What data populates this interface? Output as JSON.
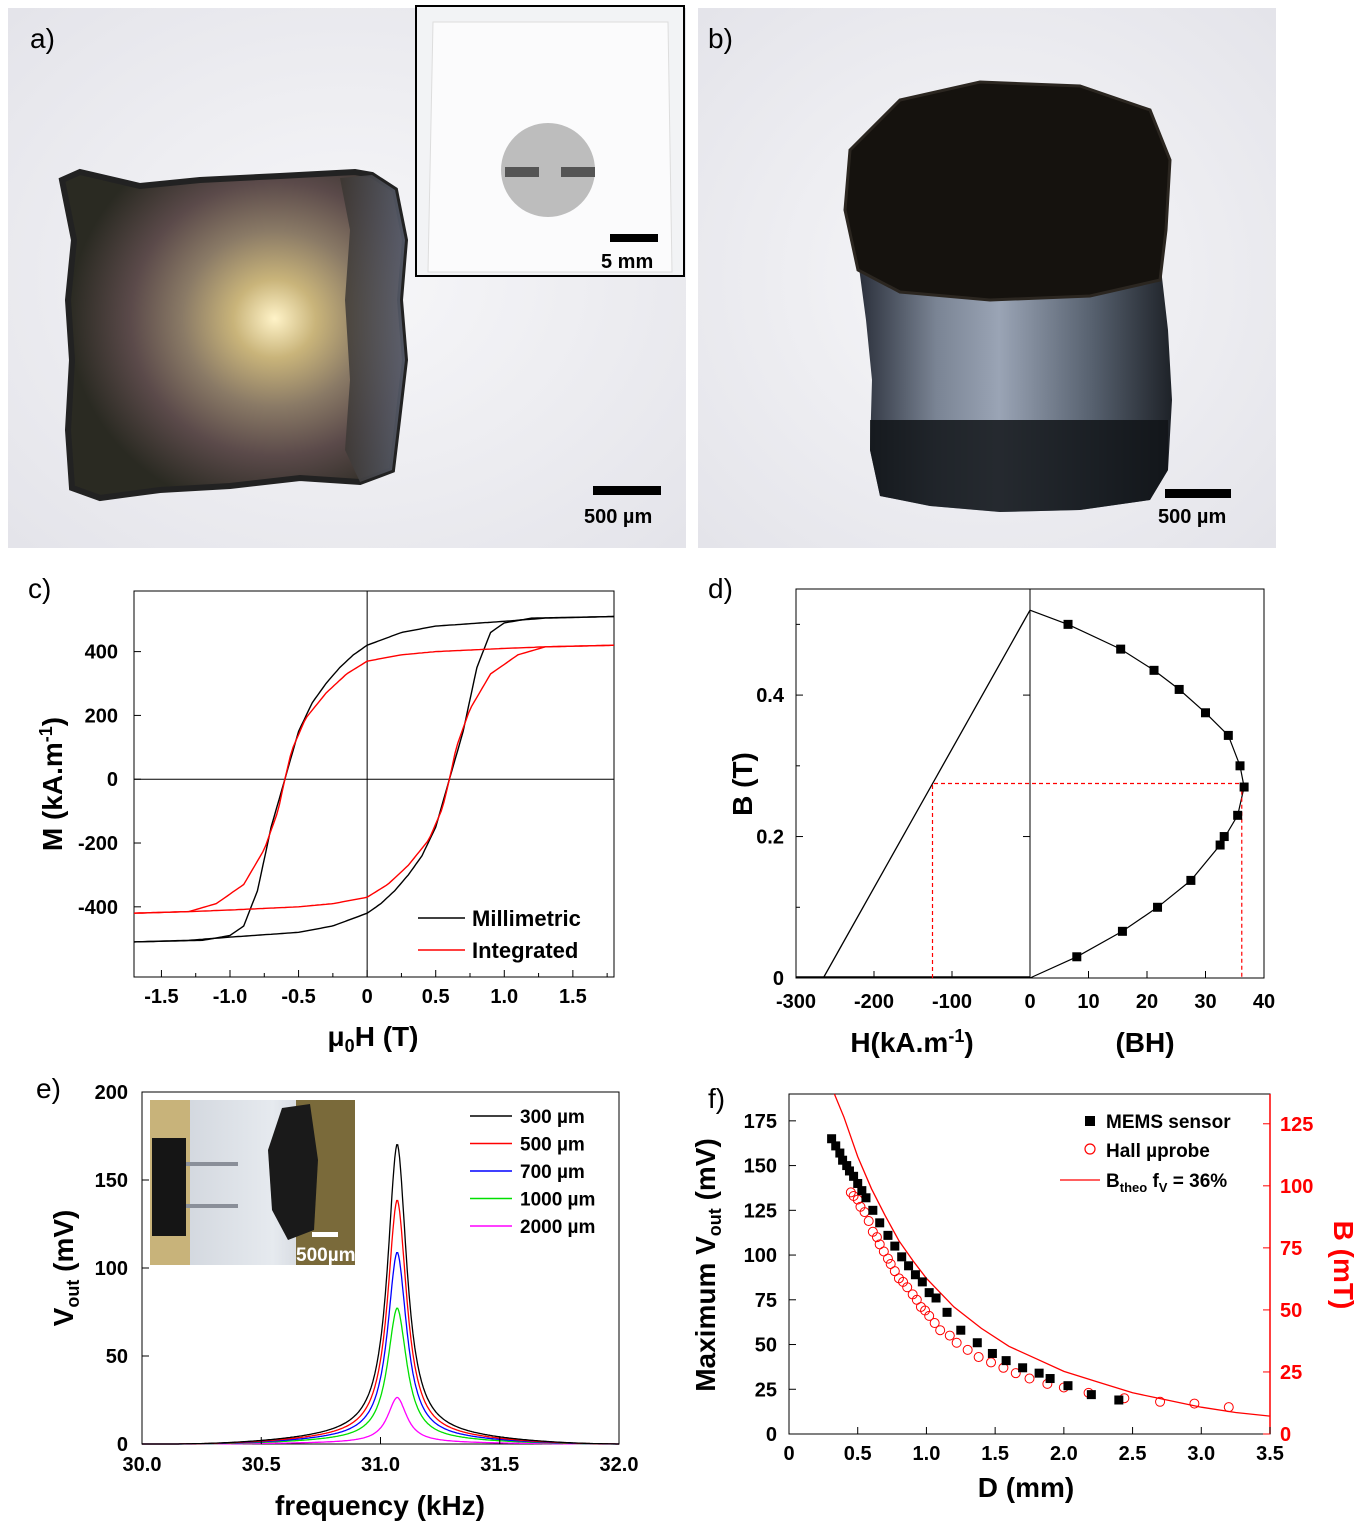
{
  "panels": {
    "a": {
      "label": "a)",
      "scale_bar": "500 µm",
      "inset_scale_bar": "5 mm"
    },
    "b": {
      "label": "b)",
      "scale_bar": "500 µm"
    },
    "c": {
      "label": "c)"
    },
    "d": {
      "label": "d)"
    },
    "e": {
      "label": "e)",
      "inset_scale_bar": "500µm"
    },
    "f": {
      "label": "f)"
    }
  },
  "colors": {
    "black": "#000000",
    "red": "#ff0000",
    "blue": "#0000ff",
    "green": "#00e000",
    "magenta": "#ff00ff"
  },
  "chart_data": [
    {
      "id": "c",
      "type": "line",
      "xlabel": "μ0H (T)",
      "ylabel": "M (kA.m-1)",
      "xlim": [
        -1.7,
        1.8
      ],
      "ylim": [
        -620,
        590
      ],
      "xticks": [
        "-1.5",
        "-1.0",
        "-0.5",
        "0",
        "0.5",
        "1.0",
        "1.5"
      ],
      "yticks": [
        "-400",
        "-200",
        "0",
        "200",
        "400"
      ],
      "legend_position": "bottom-right",
      "series": [
        {
          "name": "Millimetric",
          "color": "#000000",
          "upper_branch": [
            [
              -1.7,
              -510
            ],
            [
              -1.2,
              -505
            ],
            [
              -1.0,
              -490
            ],
            [
              -0.9,
              -460
            ],
            [
              -0.8,
              -350
            ],
            [
              -0.7,
              -150
            ],
            [
              -0.6,
              0
            ],
            [
              -0.5,
              150
            ],
            [
              -0.4,
              240
            ],
            [
              -0.3,
              300
            ],
            [
              -0.2,
              350
            ],
            [
              -0.1,
              390
            ],
            [
              0,
              420
            ],
            [
              0.25,
              460
            ],
            [
              0.5,
              480
            ],
            [
              1.0,
              495
            ],
            [
              1.3,
              505
            ],
            [
              1.8,
              510
            ]
          ],
          "lower_branch": [
            [
              -1.7,
              -510
            ],
            [
              -1.3,
              -505
            ],
            [
              -1.0,
              -495
            ],
            [
              -0.5,
              -480
            ],
            [
              -0.25,
              -460
            ],
            [
              0,
              -420
            ],
            [
              0.1,
              -390
            ],
            [
              0.2,
              -350
            ],
            [
              0.3,
              -300
            ],
            [
              0.4,
              -240
            ],
            [
              0.5,
              -150
            ],
            [
              0.6,
              0
            ],
            [
              0.7,
              150
            ],
            [
              0.8,
              350
            ],
            [
              0.9,
              460
            ],
            [
              1.0,
              490
            ],
            [
              1.2,
              505
            ],
            [
              1.8,
              510
            ]
          ]
        },
        {
          "name": "Integrated",
          "color": "#ff0000",
          "upper_branch": [
            [
              -1.7,
              -420
            ],
            [
              -1.3,
              -415
            ],
            [
              -1.1,
              -390
            ],
            [
              -0.9,
              -330
            ],
            [
              -0.75,
              -220
            ],
            [
              -0.65,
              -100
            ],
            [
              -0.6,
              0
            ],
            [
              -0.55,
              90
            ],
            [
              -0.45,
              190
            ],
            [
              -0.3,
              270
            ],
            [
              -0.15,
              330
            ],
            [
              0,
              370
            ],
            [
              0.25,
              390
            ],
            [
              0.5,
              400
            ],
            [
              1.0,
              410
            ],
            [
              1.3,
              415
            ],
            [
              1.8,
              420
            ]
          ],
          "lower_branch": [
            [
              -1.7,
              -420
            ],
            [
              -1.3,
              -415
            ],
            [
              -1.0,
              -410
            ],
            [
              -0.5,
              -400
            ],
            [
              -0.25,
              -390
            ],
            [
              0,
              -370
            ],
            [
              0.15,
              -330
            ],
            [
              0.3,
              -270
            ],
            [
              0.45,
              -190
            ],
            [
              0.55,
              -90
            ],
            [
              0.6,
              0
            ],
            [
              0.65,
              100
            ],
            [
              0.75,
              220
            ],
            [
              0.9,
              330
            ],
            [
              1.1,
              390
            ],
            [
              1.3,
              415
            ],
            [
              1.8,
              420
            ]
          ]
        }
      ]
    },
    {
      "id": "d",
      "type": "line",
      "ylabel": "B (T)",
      "left_xlabel": "H(kA.m-1)",
      "right_xlabel": "(BH)",
      "left_xlim": [
        -300,
        0
      ],
      "right_xlim": [
        0,
        40
      ],
      "ylim": [
        0,
        0.55
      ],
      "left_xticks": [
        "-300",
        "-200",
        "-100",
        "0"
      ],
      "right_xticks": [
        "10",
        "20",
        "30",
        "40"
      ],
      "yticks": [
        "0",
        "0.2",
        "0.4"
      ],
      "demag_line": [
        [
          -265,
          0
        ],
        [
          0,
          0.52
        ]
      ],
      "bh_points": [
        [
          8,
          0.03
        ],
        [
          15.8,
          0.066
        ],
        [
          21.8,
          0.1
        ],
        [
          27.5,
          0.138
        ],
        [
          32.5,
          0.188
        ],
        [
          33.2,
          0.2
        ],
        [
          35.5,
          0.23
        ],
        [
          36.6,
          0.27
        ],
        [
          35.9,
          0.3
        ],
        [
          33.9,
          0.343
        ],
        [
          30,
          0.375
        ],
        [
          25.5,
          0.408
        ],
        [
          21.2,
          0.435
        ],
        [
          15.5,
          0.465
        ],
        [
          6.5,
          0.5
        ]
      ],
      "bh_curve": [
        [
          0,
          0
        ],
        [
          8,
          0.03
        ],
        [
          15.8,
          0.066
        ],
        [
          21.8,
          0.1
        ],
        [
          27.5,
          0.138
        ],
        [
          32.5,
          0.188
        ],
        [
          35.5,
          0.23
        ],
        [
          36.6,
          0.27
        ],
        [
          35.9,
          0.3
        ],
        [
          33.9,
          0.343
        ],
        [
          30,
          0.375
        ],
        [
          25.5,
          0.408
        ],
        [
          21.2,
          0.435
        ],
        [
          15.5,
          0.465
        ],
        [
          6.5,
          0.5
        ],
        [
          0,
          0.52
        ]
      ],
      "max_bh": {
        "B": 0.275,
        "H": -125,
        "BH": 36.2
      }
    },
    {
      "id": "e",
      "type": "line",
      "xlabel": "frequency (kHz)",
      "ylabel": "Vout (mV)",
      "xlim": [
        30.0,
        32.0
      ],
      "ylim": [
        0,
        200
      ],
      "xticks": [
        "30.0",
        "30.5",
        "31.0",
        "31.5",
        "32.0"
      ],
      "yticks": [
        "0",
        "50",
        "100",
        "150",
        "200"
      ],
      "legend_position": "top-right",
      "peak_frequency": 31.07,
      "series": [
        {
          "name": "300 µm",
          "color": "#000000",
          "peak": 161
        },
        {
          "name": "500 µm",
          "color": "#ff0000",
          "peak": 131
        },
        {
          "name": "700 µm",
          "color": "#0000ff",
          "peak": 103
        },
        {
          "name": "1000 µm",
          "color": "#00e000",
          "peak": 73
        },
        {
          "name": "2000 µm",
          "color": "#ff00ff",
          "peak": 25
        }
      ]
    },
    {
      "id": "f",
      "type": "scatter",
      "xlabel": "D (mm)",
      "ylabel": "Maximum Vout (mV)",
      "y2label": "B (mT)",
      "xlim": [
        0,
        3.5
      ],
      "ylim": [
        0,
        190
      ],
      "y2lim": [
        0,
        137
      ],
      "xticks": [
        "0",
        "0.5",
        "1.0",
        "1.5",
        "2.0",
        "2.5",
        "3.0",
        "3.5"
      ],
      "yticks": [
        "0",
        "25",
        "50",
        "75",
        "100",
        "125",
        "150",
        "175"
      ],
      "y2ticks": [
        "0",
        "25",
        "50",
        "75",
        "100",
        "125"
      ],
      "legend_position": "top-right",
      "series": [
        {
          "name": "MEMS sensor",
          "color": "#000000",
          "points": [
            [
              0.31,
              165
            ],
            [
              0.34,
              161
            ],
            [
              0.37,
              157
            ],
            [
              0.39,
              153
            ],
            [
              0.42,
              150
            ],
            [
              0.44,
              147
            ],
            [
              0.47,
              144
            ],
            [
              0.5,
              140
            ],
            [
              0.53,
              136
            ],
            [
              0.56,
              132
            ],
            [
              0.61,
              125
            ],
            [
              0.66,
              118
            ],
            [
              0.72,
              111
            ],
            [
              0.77,
              105
            ],
            [
              0.82,
              99
            ],
            [
              0.87,
              94
            ],
            [
              0.92,
              89
            ],
            [
              0.97,
              85
            ],
            [
              1.02,
              79
            ],
            [
              1.07,
              76
            ],
            [
              1.15,
              68
            ],
            [
              1.25,
              58
            ],
            [
              1.37,
              51
            ],
            [
              1.48,
              45
            ],
            [
              1.58,
              41
            ],
            [
              1.7,
              37
            ],
            [
              1.82,
              34
            ],
            [
              1.9,
              31
            ],
            [
              2.03,
              27
            ],
            [
              2.2,
              22
            ],
            [
              2.4,
              19
            ]
          ]
        },
        {
          "name": "Hall µprobe",
          "color": "#ff0000",
          "points": [
            [
              0.45,
              135
            ],
            [
              0.47,
              133
            ],
            [
              0.5,
              131
            ],
            [
              0.52,
              127
            ],
            [
              0.55,
              124
            ],
            [
              0.58,
              119
            ],
            [
              0.61,
              113
            ],
            [
              0.64,
              110
            ],
            [
              0.66,
              106
            ],
            [
              0.69,
              102
            ],
            [
              0.72,
              98
            ],
            [
              0.74,
              95
            ],
            [
              0.77,
              91
            ],
            [
              0.8,
              87
            ],
            [
              0.83,
              85
            ],
            [
              0.86,
              82
            ],
            [
              0.9,
              78
            ],
            [
              0.93,
              75
            ],
            [
              0.96,
              71
            ],
            [
              0.99,
              69
            ],
            [
              1.02,
              66
            ],
            [
              1.06,
              62
            ],
            [
              1.1,
              58
            ],
            [
              1.17,
              55
            ],
            [
              1.22,
              51
            ],
            [
              1.3,
              47
            ],
            [
              1.38,
              43
            ],
            [
              1.47,
              40
            ],
            [
              1.56,
              37
            ],
            [
              1.65,
              34
            ],
            [
              1.75,
              31
            ],
            [
              1.88,
              28
            ],
            [
              2.0,
              26
            ],
            [
              2.18,
              23
            ],
            [
              2.44,
              20
            ],
            [
              2.7,
              18
            ],
            [
              2.95,
              17
            ],
            [
              3.2,
              15
            ]
          ]
        },
        {
          "name": "Btheo fV = 36%",
          "color": "#ff0000",
          "curve": [
            [
              0.33,
              190
            ],
            [
              0.4,
              177
            ],
            [
              0.5,
              155
            ],
            [
              0.6,
              137
            ],
            [
              0.7,
              122
            ],
            [
              0.8,
              108
            ],
            [
              0.9,
              97
            ],
            [
              1.0,
              87
            ],
            [
              1.2,
              71
            ],
            [
              1.4,
              59
            ],
            [
              1.6,
              49
            ],
            [
              1.8,
              42
            ],
            [
              2.0,
              35
            ],
            [
              2.25,
              29
            ],
            [
              2.5,
              23
            ],
            [
              2.75,
              19
            ],
            [
              3.0,
              15
            ],
            [
              3.25,
              12
            ],
            [
              3.5,
              10
            ]
          ]
        }
      ]
    }
  ]
}
